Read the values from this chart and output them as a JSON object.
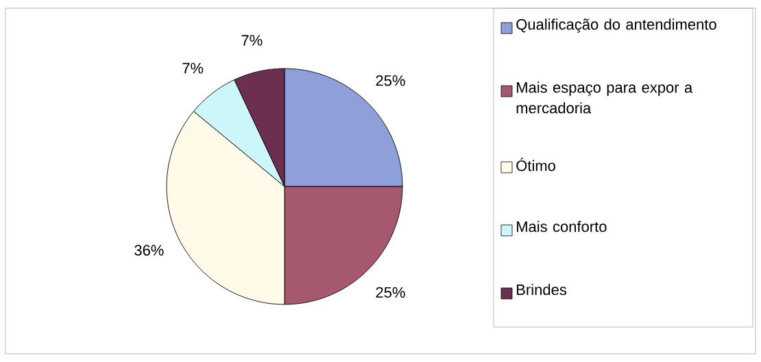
{
  "chart_data": {
    "type": "pie",
    "categories": [
      "Qualificação do antendimento",
      "Mais espaço para expor a mercadoria",
      "Ótimo",
      "Mais conforto",
      "Brindes"
    ],
    "values": [
      25,
      25,
      36,
      7,
      7
    ],
    "colors": [
      "#8e9fd9",
      "#a6586f",
      "#fffbe8",
      "#ccf6f9",
      "#6c2f4f"
    ],
    "value_labels": [
      "25%",
      "25%",
      "36%",
      "7%",
      "7%"
    ],
    "legend": "right"
  }
}
